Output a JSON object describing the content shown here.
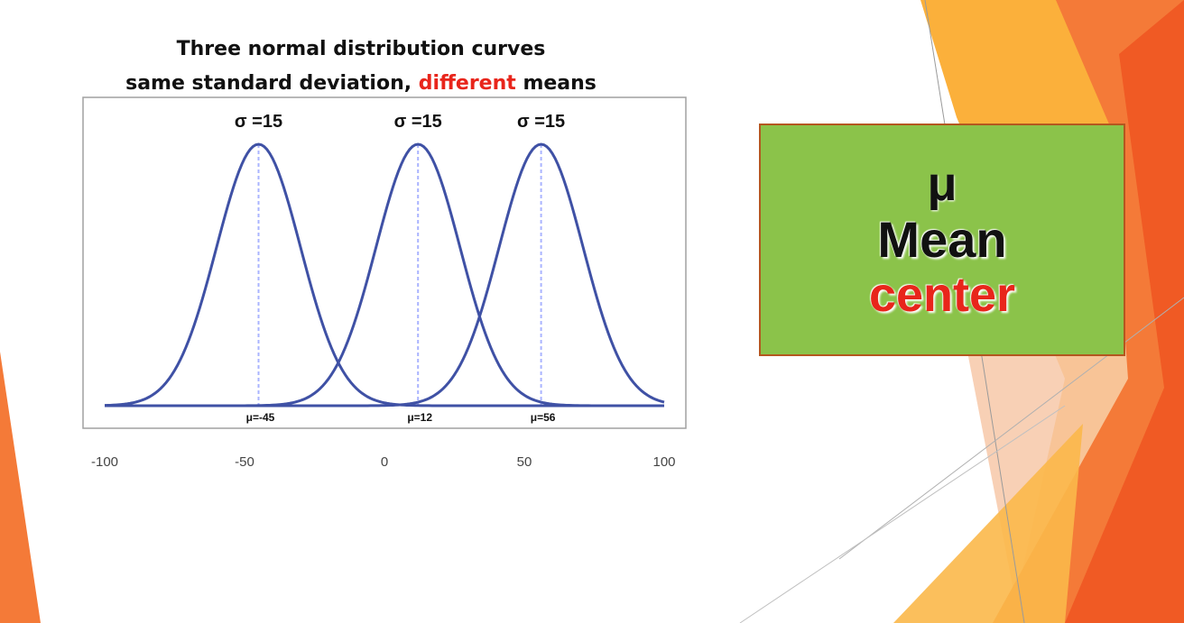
{
  "title": {
    "line1": "Three normal distribution curves",
    "line2_prefix": "same standard deviation,",
    "line2_highlight": "different",
    "line2_suffix": "means"
  },
  "chart_data": {
    "type": "line",
    "title": "Three normal distribution curves same standard deviation, different means",
    "xlim": [
      -100,
      100
    ],
    "x_ticks": [
      "-100",
      "-50",
      "0",
      "50",
      "100"
    ],
    "series": [
      {
        "mean": -45,
        "sd": 15,
        "sigma_label": "σ =15",
        "mu_label": "μ=-45"
      },
      {
        "mean": 12,
        "sd": 15,
        "sigma_label": "σ =15",
        "mu_label": "μ=12"
      },
      {
        "mean": 56,
        "sd": 15,
        "sigma_label": "σ =15",
        "mu_label": "μ=56"
      }
    ],
    "grid": false,
    "colors": {
      "curve": "#3f51a5",
      "mean_line": "#aab4ff",
      "frame": "#a0a0a0"
    }
  },
  "box": {
    "symbol": "μ",
    "word": "Mean",
    "emphasis": "center",
    "colors": {
      "background": "#8bc34a",
      "border": "#b4571f",
      "emphasis": "#e8251b"
    }
  }
}
